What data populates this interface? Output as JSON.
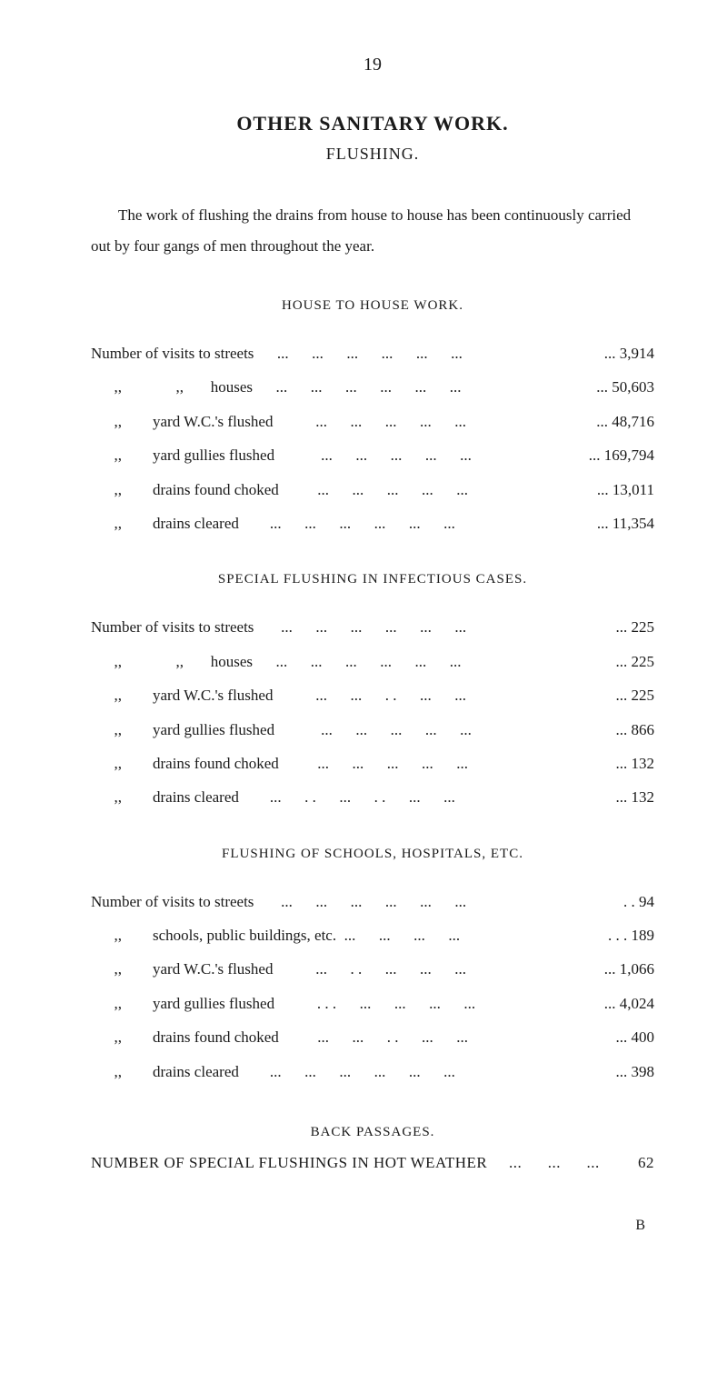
{
  "page_number": "19",
  "title": "OTHER  SANITARY  WORK.",
  "subtitle": "FLUSHING.",
  "intro": "The work of flushing the drains from house to house has been continuously carried out by four gangs of men throughout the year.",
  "sections": {
    "house_to_house": {
      "heading": "HOUSE TO HOUSE WORK.",
      "rows": [
        {
          "label": "Number of visits to streets      ...      ...      ...      ...      ...      ...",
          "value": "...     3,914"
        },
        {
          "label": "      ,,              ,,       houses      ...      ...      ...      ...      ...      ...",
          "value": "...   50,603"
        },
        {
          "label": "      ,,        yard W.C.'s flushed           ...      ...      ...      ...      ...",
          "value": "...   48,716"
        },
        {
          "label": "      ,,        yard gullies flushed            ...      ...      ...      ...      ...",
          "value": "... 169,794"
        },
        {
          "label": "      ,,        drains found choked          ...      ...      ...      ...      ...",
          "value": "...   13,011"
        },
        {
          "label": "      ,,        drains cleared        ...      ...      ...      ...      ...      ...",
          "value": "...   11,354"
        }
      ]
    },
    "special_flushing": {
      "heading": "SPECIAL FLUSHING IN INFECTIOUS CASES.",
      "rows": [
        {
          "label": "Number of visits to streets       ...      ...      ...      ...      ...      ...",
          "value": "...        225"
        },
        {
          "label": "      ,,              ,,       houses      ...      ...      ...      ...      ...      ...",
          "value": "...        225"
        },
        {
          "label": "      ,,        yard W.C.'s flushed           ...      ...      . .      ...      ...",
          "value": "...        225"
        },
        {
          "label": "      ,,        yard gullies flushed            ...      ...      ...      ...      ...",
          "value": "...        866"
        },
        {
          "label": "      ,,        drains found choked          ...      ...      ...      ...      ...",
          "value": "...        132"
        },
        {
          "label": "      ,,        drains cleared        ...      . .      ...      . .      ...      ...",
          "value": "...        132"
        }
      ]
    },
    "schools_hospitals": {
      "heading": "FLUSHING OF SCHOOLS, HOSPITALS, ETC.",
      "rows": [
        {
          "label": "Number of visits to streets       ...      ...      ...      ...      ...      ...",
          "value": ". .          94"
        },
        {
          "label": "      ,,        schools, public buildings, etc.  ...      ...      ...      ...",
          "value": ". . .        189"
        },
        {
          "label": "      ,,        yard W.C.'s flushed           ...      . .      ...      ...      ...",
          "value": "...     1,066"
        },
        {
          "label": "      ,,        yard gullies flushed           . . .      ...      ...      ...      ...",
          "value": "...     4,024"
        },
        {
          "label": "      ,,        drains found choked          ...      ...      . .      ...      ...",
          "value": "...        400"
        },
        {
          "label": "      ,,        drains cleared        ...      ...      ...      ...      ...      ...",
          "value": "...        398"
        }
      ]
    }
  },
  "back_passages": {
    "heading": "BACK PASSAGES.",
    "label": "NUMBER OF SPECIAL FLUSHINGS IN HOT WEATHER     ...      ...      ...",
    "value": "62"
  },
  "signature": "B"
}
